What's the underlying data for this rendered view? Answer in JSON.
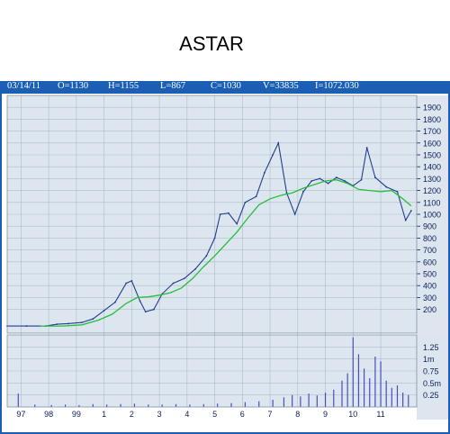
{
  "title": "ASTAR",
  "info": {
    "date": "03/14/11",
    "open": "O=1130",
    "high": "H=1155",
    "low": "L=867",
    "close": "C=1030",
    "volume": "V=33835",
    "indicator": "I=1072.030"
  },
  "colors": {
    "background": "#dde6ef",
    "frame": "#1a5fb4",
    "price": "#1f3f8f",
    "moving_average": "#22c03a",
    "volume": "#4b4bbf",
    "grid": "#aebccb"
  },
  "chart_data": [
    {
      "type": "line",
      "title": "ASTAR",
      "x": [
        "97",
        "98",
        "99",
        "1",
        "2",
        "3",
        "4",
        "5",
        "6",
        "7",
        "8",
        "9",
        "10",
        "11"
      ],
      "yticks": [
        200,
        300,
        400,
        500,
        600,
        700,
        800,
        900,
        1000,
        1100,
        1200,
        1300,
        1400,
        1500,
        1600,
        1700,
        1800,
        1900
      ],
      "ylim": [
        0,
        2000
      ],
      "grid": true,
      "series": [
        {
          "name": "",
          "points": [
            [
              96.5,
              60
            ],
            [
              97.2,
              60
            ],
            [
              97.9,
              60
            ],
            [
              98.3,
              75
            ],
            [
              98.7,
              80
            ],
            [
              99.2,
              90
            ],
            [
              99.6,
              120
            ],
            [
              100.0,
              190
            ],
            [
              100.4,
              260
            ],
            [
              100.8,
              420
            ],
            [
              101.0,
              440
            ],
            [
              101.3,
              270
            ],
            [
              101.5,
              180
            ],
            [
              101.8,
              200
            ],
            [
              102.1,
              330
            ],
            [
              102.5,
              420
            ],
            [
              102.9,
              460
            ],
            [
              103.3,
              540
            ],
            [
              103.7,
              650
            ],
            [
              104.0,
              800
            ],
            [
              104.2,
              1000
            ],
            [
              104.5,
              1010
            ],
            [
              104.8,
              920
            ],
            [
              105.1,
              1100
            ],
            [
              105.5,
              1150
            ],
            [
              105.8,
              1350
            ],
            [
              106.1,
              1500
            ],
            [
              106.3,
              1600
            ],
            [
              106.6,
              1180
            ],
            [
              106.9,
              1000
            ],
            [
              107.2,
              1190
            ],
            [
              107.5,
              1280
            ],
            [
              107.8,
              1300
            ],
            [
              108.1,
              1260
            ],
            [
              108.4,
              1310
            ],
            [
              108.7,
              1280
            ],
            [
              109.0,
              1240
            ],
            [
              109.3,
              1290
            ],
            [
              109.5,
              1560
            ],
            [
              109.8,
              1310
            ],
            [
              110.2,
              1230
            ],
            [
              110.6,
              1190
            ],
            [
              110.9,
              950
            ],
            [
              111.1,
              1030
            ]
          ]
        },
        {
          "name": "",
          "points": [
            [
              97.7,
              60
            ],
            [
              98.5,
              60
            ],
            [
              99.2,
              70
            ],
            [
              99.8,
              110
            ],
            [
              100.3,
              160
            ],
            [
              100.8,
              250
            ],
            [
              101.2,
              300
            ],
            [
              101.6,
              305
            ],
            [
              102.0,
              320
            ],
            [
              102.4,
              340
            ],
            [
              102.8,
              380
            ],
            [
              103.2,
              460
            ],
            [
              103.6,
              560
            ],
            [
              104.0,
              650
            ],
            [
              104.4,
              750
            ],
            [
              104.8,
              850
            ],
            [
              105.2,
              970
            ],
            [
              105.6,
              1080
            ],
            [
              106.0,
              1130
            ],
            [
              106.4,
              1160
            ],
            [
              106.8,
              1180
            ],
            [
              107.2,
              1220
            ],
            [
              107.6,
              1250
            ],
            [
              108.0,
              1280
            ],
            [
              108.4,
              1290
            ],
            [
              108.8,
              1260
            ],
            [
              109.2,
              1210
            ],
            [
              109.6,
              1200
            ],
            [
              110.0,
              1190
            ],
            [
              110.4,
              1200
            ],
            [
              110.8,
              1130
            ],
            [
              111.1,
              1070
            ]
          ]
        }
      ]
    },
    {
      "type": "bar",
      "x": [
        "97",
        "98",
        "99",
        "1",
        "2",
        "3",
        "4",
        "5",
        "6",
        "7",
        "8",
        "9",
        "10",
        "11"
      ],
      "yticks": [
        "0.25",
        "0.5m",
        "0.75",
        "1m",
        "1.25"
      ],
      "ylim": [
        0,
        1.5
      ],
      "series": [
        {
          "name": "",
          "points": [
            [
              96.9,
              0.28
            ],
            [
              97.5,
              0.05
            ],
            [
              98.1,
              0.04
            ],
            [
              98.6,
              0.05
            ],
            [
              99.1,
              0.04
            ],
            [
              99.6,
              0.06
            ],
            [
              100.1,
              0.05
            ],
            [
              100.6,
              0.06
            ],
            [
              101.1,
              0.07
            ],
            [
              101.6,
              0.05
            ],
            [
              102.1,
              0.05
            ],
            [
              102.6,
              0.06
            ],
            [
              103.1,
              0.05
            ],
            [
              103.6,
              0.06
            ],
            [
              104.1,
              0.07
            ],
            [
              104.6,
              0.08
            ],
            [
              105.1,
              0.1
            ],
            [
              105.6,
              0.12
            ],
            [
              106.1,
              0.15
            ],
            [
              106.5,
              0.2
            ],
            [
              106.8,
              0.25
            ],
            [
              107.1,
              0.22
            ],
            [
              107.4,
              0.28
            ],
            [
              107.7,
              0.24
            ],
            [
              108.0,
              0.3
            ],
            [
              108.3,
              0.36
            ],
            [
              108.6,
              0.55
            ],
            [
              108.8,
              0.7
            ],
            [
              109.0,
              1.45
            ],
            [
              109.2,
              1.1
            ],
            [
              109.4,
              0.8
            ],
            [
              109.6,
              0.6
            ],
            [
              109.8,
              1.05
            ],
            [
              110.0,
              0.95
            ],
            [
              110.2,
              0.55
            ],
            [
              110.4,
              0.4
            ],
            [
              110.6,
              0.45
            ],
            [
              110.8,
              0.3
            ],
            [
              111.0,
              0.25
            ]
          ]
        }
      ]
    }
  ]
}
